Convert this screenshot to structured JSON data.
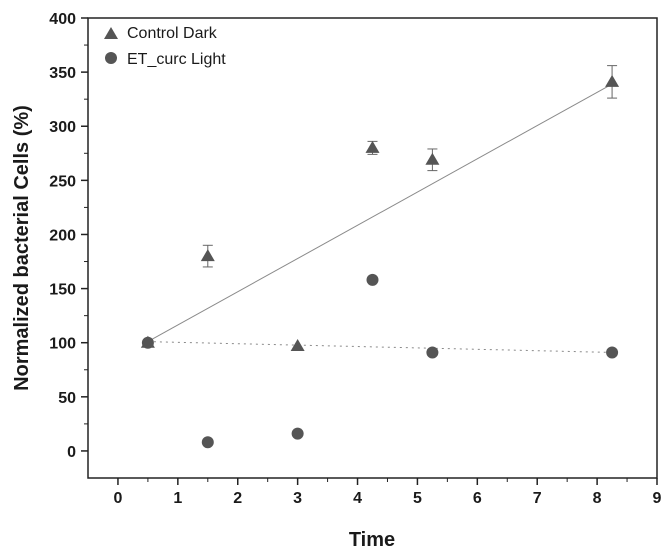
{
  "chart_data": {
    "type": "scatter",
    "xlabel": "Time",
    "ylabel": "Normalized bacterial Cells (%)",
    "xlim": [
      -0.5,
      9
    ],
    "ylim": [
      -25,
      400
    ],
    "x_ticks": [
      0,
      1,
      2,
      3,
      4,
      5,
      6,
      7,
      8,
      9
    ],
    "y_ticks": [
      0,
      50,
      100,
      150,
      200,
      250,
      300,
      350,
      400
    ],
    "x_tick_labels": [
      "0",
      "1",
      "2",
      "3",
      "4",
      "5",
      "6",
      "7",
      "8",
      "9"
    ],
    "y_tick_labels": [
      "0",
      "50",
      "100",
      "150",
      "200",
      "250",
      "300",
      "350",
      "400"
    ],
    "grid": false,
    "legend_position": "top-left",
    "series": [
      {
        "name": "Control Dark",
        "marker": "triangle",
        "color": "#555555",
        "x": [
          0.5,
          1.5,
          3,
          4.25,
          5.25,
          8.25
        ],
        "y": [
          100,
          180,
          97,
          280,
          269,
          341
        ],
        "error": [
          0,
          10,
          0,
          6,
          10,
          15
        ],
        "fit_line": {
          "style": "solid",
          "x": [
            0.5,
            8.25
          ],
          "y": [
            101,
            339
          ]
        }
      },
      {
        "name": "ET_curc Light",
        "marker": "circle",
        "color": "#555555",
        "x": [
          0.5,
          1.5,
          3,
          4.25,
          5.25,
          8.25
        ],
        "y": [
          100,
          8,
          16,
          158,
          91,
          91
        ],
        "fit_line": {
          "style": "dotted",
          "x": [
            0.5,
            8.25
          ],
          "y": [
            101,
            91
          ]
        }
      }
    ]
  }
}
